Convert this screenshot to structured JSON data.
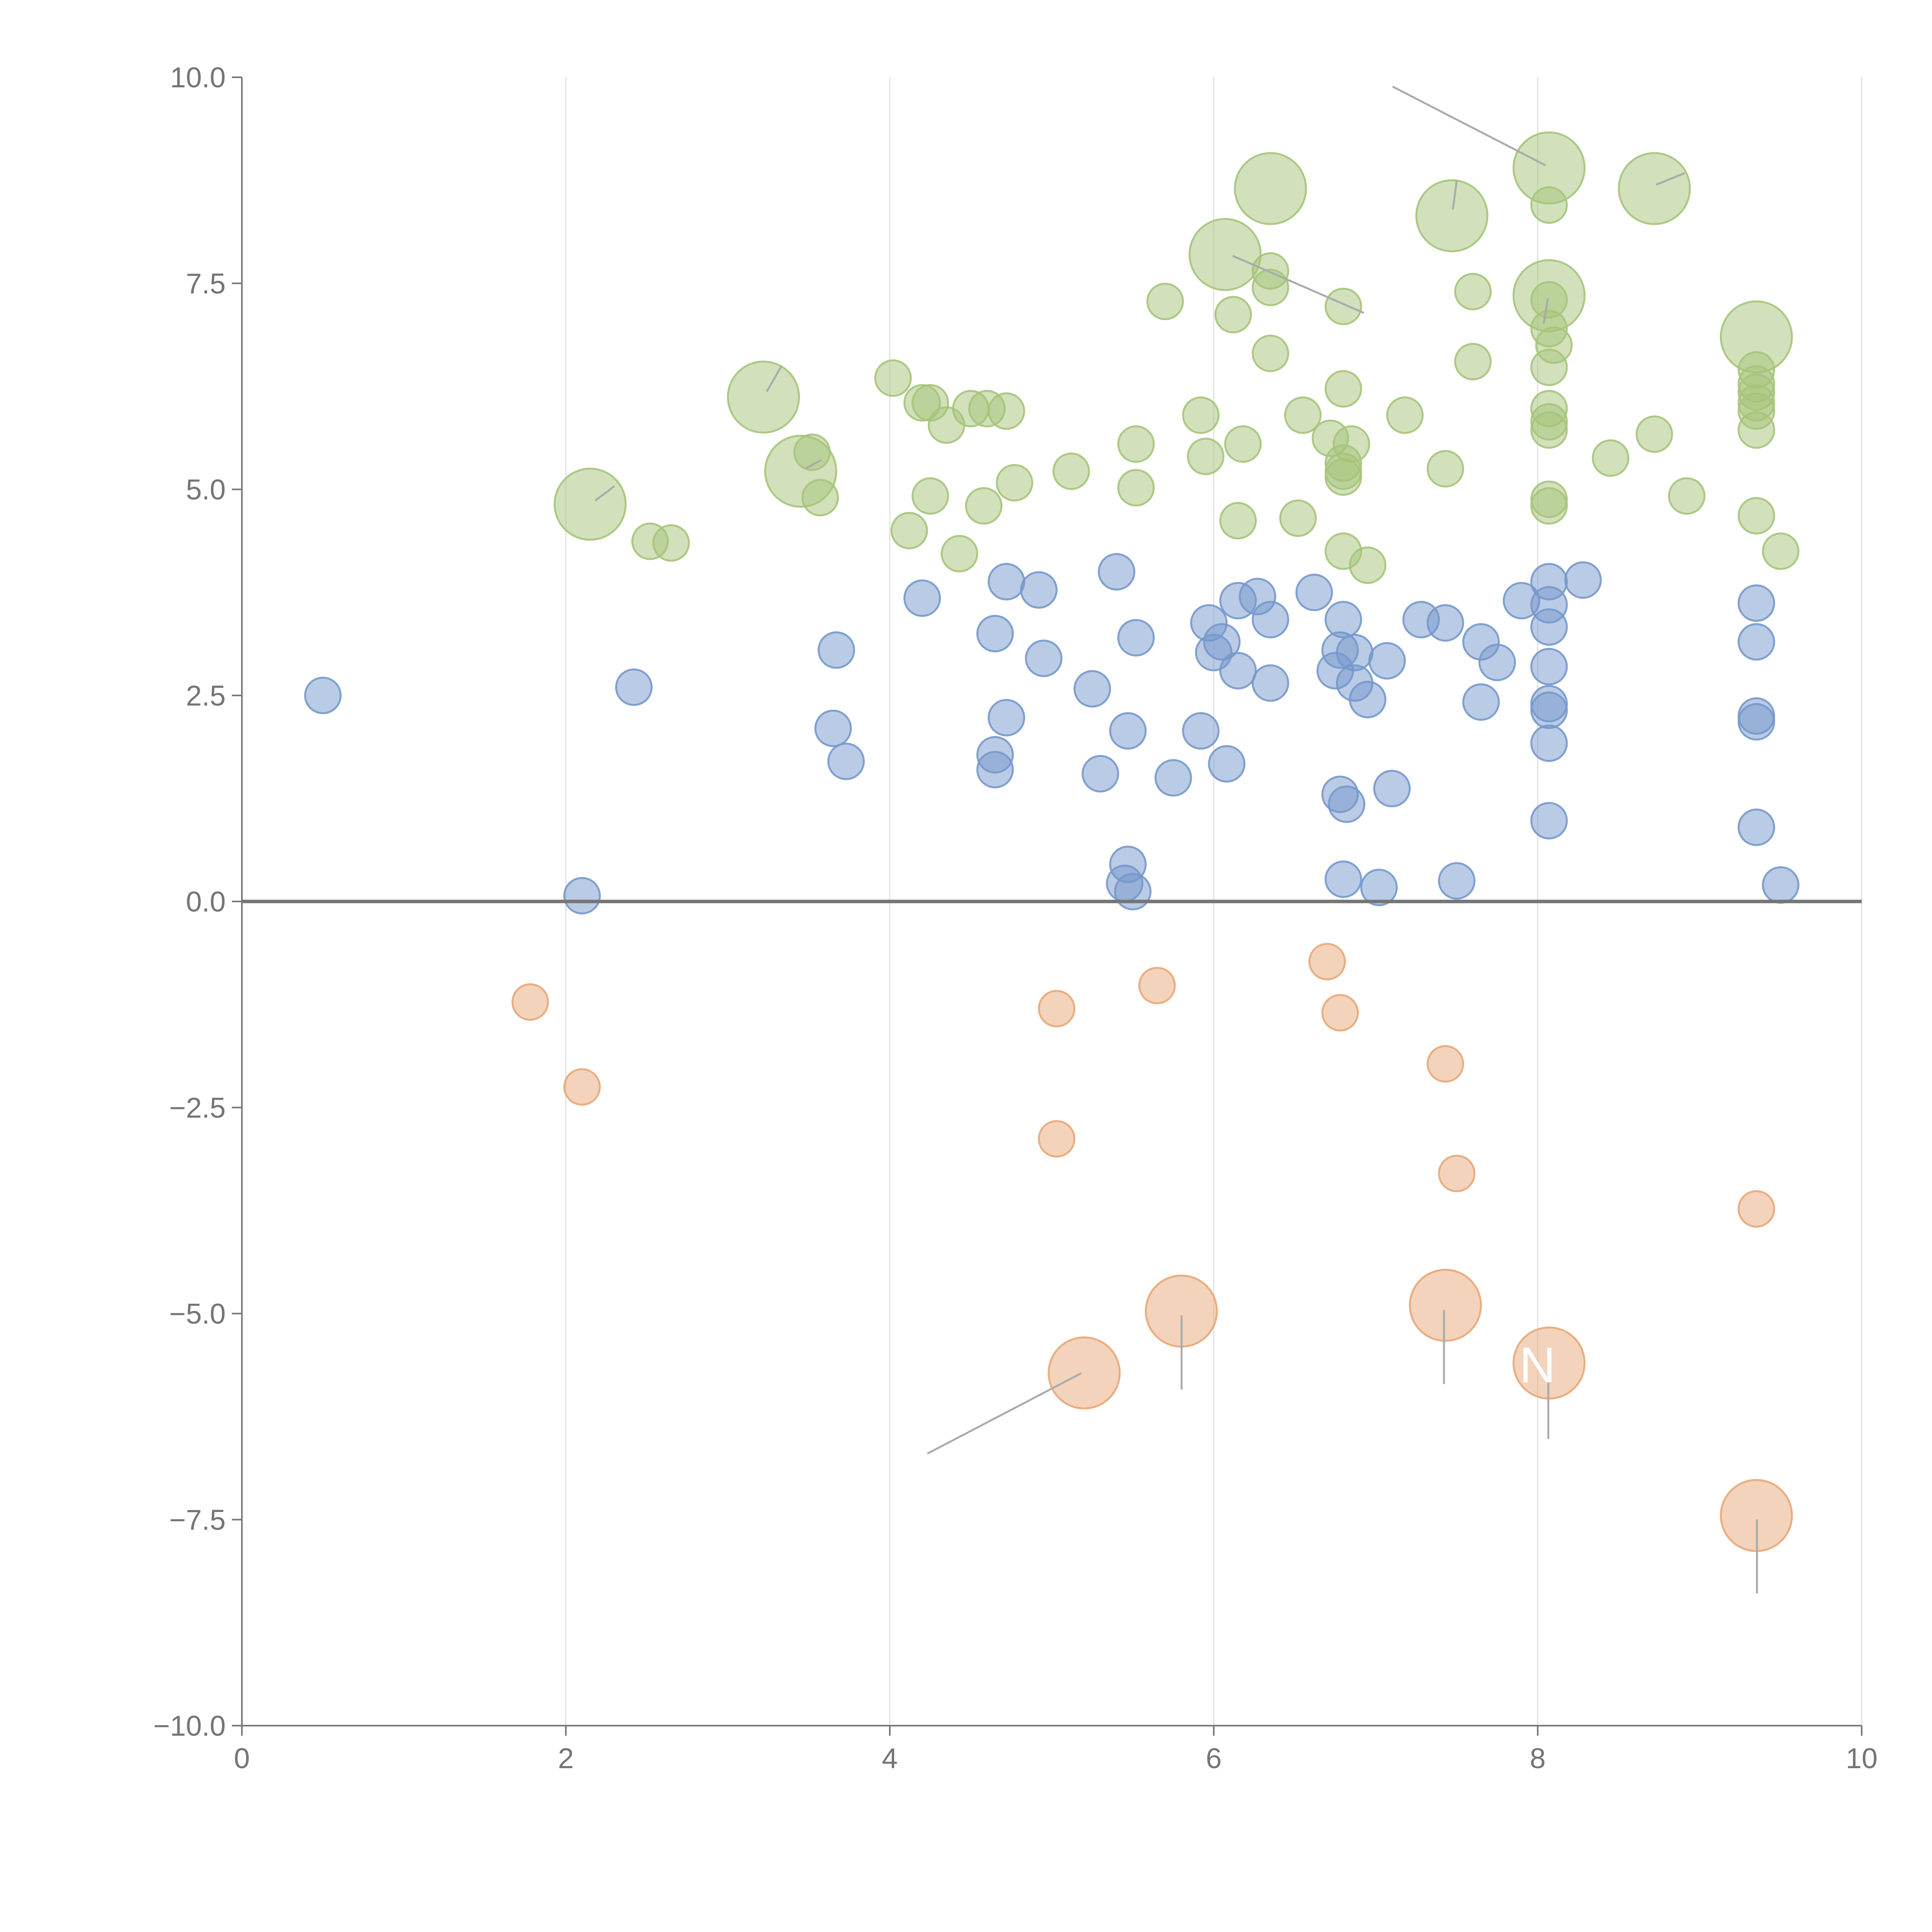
{
  "chart_data": {
    "type": "scatter",
    "title": "",
    "xlabel": "",
    "ylabel": "",
    "xlim": [
      0,
      10
    ],
    "ylim": [
      -10,
      10
    ],
    "grid": {
      "x": true,
      "y": false
    },
    "zero_line": true,
    "x_ticks": [
      {
        "value": 0,
        "label": "0"
      },
      {
        "value": 2,
        "label": "2"
      },
      {
        "value": 4,
        "label": "4"
      },
      {
        "value": 6,
        "label": "6"
      },
      {
        "value": 8,
        "label": "8"
      },
      {
        "value": 10,
        "label": "10"
      }
    ],
    "y_ticks": [
      {
        "value": 10,
        "label": "10.0"
      },
      {
        "value": 7.5,
        "label": "7.5"
      },
      {
        "value": 5,
        "label": "5.0"
      },
      {
        "value": 2.5,
        "label": "2.5"
      },
      {
        "value": 0,
        "label": "0.0"
      },
      {
        "value": -2.5,
        "label": "−2.5"
      },
      {
        "value": -5,
        "label": "−5.0"
      },
      {
        "value": -7.5,
        "label": "−7.5"
      },
      {
        "value": -10,
        "label": "−10.0"
      }
    ],
    "colors": {
      "green": "#a6c47a",
      "blue": "#7598cc",
      "orange": "#e8a778"
    },
    "series": [
      {
        "name": "green",
        "color": "#a6c47a",
        "points": [
          [
            8.07,
            8.9,
            2
          ],
          [
            6.35,
            8.65,
            2
          ],
          [
            8.72,
            8.65,
            2
          ],
          [
            7.47,
            8.32,
            2
          ],
          [
            6.07,
            7.85,
            2
          ],
          [
            8.07,
            7.35,
            2
          ],
          [
            9.35,
            6.85,
            2
          ],
          [
            3.22,
            6.12,
            2
          ],
          [
            3.45,
            5.22,
            2
          ],
          [
            2.15,
            4.82,
            2
          ],
          [
            8.07,
            8.45,
            1
          ],
          [
            6.35,
            7.65,
            1
          ],
          [
            6.35,
            7.45,
            1
          ],
          [
            5.7,
            7.28,
            1
          ],
          [
            6.8,
            7.22,
            1
          ],
          [
            7.6,
            7.4,
            1
          ],
          [
            6.12,
            7.12,
            1
          ],
          [
            8.07,
            7.3,
            1
          ],
          [
            8.07,
            6.95,
            1
          ],
          [
            8.1,
            6.75,
            1
          ],
          [
            6.35,
            6.65,
            1
          ],
          [
            7.6,
            6.55,
            1
          ],
          [
            8.07,
            6.48,
            1
          ],
          [
            9.35,
            6.45,
            1
          ],
          [
            9.35,
            6.28,
            1
          ],
          [
            9.35,
            6.18,
            1
          ],
          [
            9.35,
            6.05,
            1
          ],
          [
            9.35,
            5.95,
            1
          ],
          [
            9.35,
            5.72,
            1
          ],
          [
            4.02,
            6.35,
            1
          ],
          [
            4.2,
            6.05,
            1
          ],
          [
            4.25,
            6.05,
            1
          ],
          [
            4.5,
            5.98,
            1
          ],
          [
            4.6,
            5.98,
            1
          ],
          [
            4.72,
            5.95,
            1
          ],
          [
            4.35,
            5.78,
            1
          ],
          [
            5.92,
            5.9,
            1
          ],
          [
            6.55,
            5.9,
            1
          ],
          [
            7.18,
            5.9,
            1
          ],
          [
            6.8,
            6.22,
            1
          ],
          [
            8.07,
            5.98,
            1
          ],
          [
            8.07,
            5.82,
            1
          ],
          [
            8.07,
            5.72,
            1
          ],
          [
            8.72,
            5.67,
            1
          ],
          [
            5.52,
            5.55,
            1
          ],
          [
            6.18,
            5.55,
            1
          ],
          [
            6.72,
            5.62,
            1
          ],
          [
            6.85,
            5.55,
            1
          ],
          [
            3.52,
            5.45,
            1
          ],
          [
            5.95,
            5.4,
            1
          ],
          [
            8.45,
            5.38,
            1
          ],
          [
            6.8,
            5.32,
            1
          ],
          [
            6.8,
            5.22,
            1
          ],
          [
            6.8,
            5.15,
            1
          ],
          [
            7.43,
            5.25,
            1
          ],
          [
            5.12,
            5.22,
            1
          ],
          [
            4.77,
            5.08,
            1
          ],
          [
            5.52,
            5.02,
            1
          ],
          [
            4.25,
            4.92,
            1
          ],
          [
            3.57,
            4.9,
            1
          ],
          [
            8.92,
            4.92,
            1
          ],
          [
            8.07,
            4.88,
            1
          ],
          [
            8.07,
            4.8,
            1
          ],
          [
            4.58,
            4.8,
            1
          ],
          [
            9.35,
            4.68,
            1
          ],
          [
            6.15,
            4.62,
            1
          ],
          [
            6.52,
            4.65,
            1
          ],
          [
            4.12,
            4.5,
            1
          ],
          [
            2.52,
            4.37,
            1
          ],
          [
            2.65,
            4.35,
            1
          ],
          [
            4.43,
            4.22,
            1
          ],
          [
            6.8,
            4.25,
            1
          ],
          [
            9.5,
            4.25,
            1
          ],
          [
            6.95,
            4.08,
            1
          ]
        ]
      },
      {
        "name": "blue",
        "color": "#7598cc",
        "points": [
          [
            5.4,
            4.0,
            1
          ],
          [
            4.72,
            3.88,
            1
          ],
          [
            4.92,
            3.78,
            1
          ],
          [
            6.62,
            3.75,
            1
          ],
          [
            7.9,
            3.65,
            1
          ],
          [
            4.2,
            3.68,
            1
          ],
          [
            6.15,
            3.65,
            1
          ],
          [
            6.27,
            3.7,
            1
          ],
          [
            8.07,
            3.88,
            1
          ],
          [
            8.28,
            3.9,
            1
          ],
          [
            8.07,
            3.6,
            1
          ],
          [
            9.35,
            3.62,
            1
          ],
          [
            5.97,
            3.38,
            1
          ],
          [
            6.35,
            3.42,
            1
          ],
          [
            6.8,
            3.42,
            1
          ],
          [
            7.28,
            3.42,
            1
          ],
          [
            7.43,
            3.38,
            1
          ],
          [
            8.07,
            3.33,
            1
          ],
          [
            4.65,
            3.25,
            1
          ],
          [
            5.52,
            3.2,
            1
          ],
          [
            6.05,
            3.15,
            1
          ],
          [
            7.65,
            3.15,
            1
          ],
          [
            9.35,
            3.15,
            1
          ],
          [
            3.67,
            3.05,
            1
          ],
          [
            6.0,
            3.02,
            1
          ],
          [
            6.78,
            3.05,
            1
          ],
          [
            6.87,
            3.02,
            1
          ],
          [
            4.95,
            2.95,
            1
          ],
          [
            7.07,
            2.92,
            1
          ],
          [
            7.75,
            2.9,
            1
          ],
          [
            8.07,
            2.85,
            1
          ],
          [
            6.15,
            2.8,
            1
          ],
          [
            6.75,
            2.8,
            1
          ],
          [
            6.35,
            2.65,
            1
          ],
          [
            6.87,
            2.65,
            1
          ],
          [
            0.5,
            2.5,
            1
          ],
          [
            2.42,
            2.6,
            1
          ],
          [
            5.25,
            2.58,
            1
          ],
          [
            6.95,
            2.45,
            1
          ],
          [
            7.65,
            2.42,
            1
          ],
          [
            8.07,
            2.4,
            1
          ],
          [
            8.07,
            2.32,
            1
          ],
          [
            9.35,
            2.25,
            1
          ],
          [
            9.35,
            2.18,
            1
          ],
          [
            4.72,
            2.23,
            1
          ],
          [
            3.65,
            2.1,
            1
          ],
          [
            5.47,
            2.07,
            1
          ],
          [
            5.92,
            2.07,
            1
          ],
          [
            8.07,
            1.92,
            1
          ],
          [
            4.65,
            1.78,
            1
          ],
          [
            3.73,
            1.7,
            1
          ],
          [
            6.08,
            1.67,
            1
          ],
          [
            4.65,
            1.6,
            1
          ],
          [
            5.3,
            1.55,
            1
          ],
          [
            5.75,
            1.5,
            1
          ],
          [
            7.1,
            1.37,
            1
          ],
          [
            6.78,
            1.3,
            1
          ],
          [
            6.82,
            1.18,
            1
          ],
          [
            8.07,
            0.98,
            1
          ],
          [
            9.35,
            0.9,
            1
          ],
          [
            5.47,
            0.45,
            1
          ],
          [
            6.8,
            0.27,
            1
          ],
          [
            7.5,
            0.25,
            1
          ],
          [
            5.45,
            0.22,
            1
          ],
          [
            9.5,
            0.2,
            1
          ],
          [
            7.02,
            0.17,
            1
          ],
          [
            5.5,
            0.12,
            1
          ],
          [
            2.1,
            0.07,
            1
          ]
        ]
      },
      {
        "name": "orange",
        "color": "#e8a778",
        "points": [
          [
            6.7,
            -0.73,
            1
          ],
          [
            5.65,
            -1.02,
            1
          ],
          [
            1.78,
            -1.22,
            1
          ],
          [
            5.03,
            -1.3,
            1
          ],
          [
            6.78,
            -1.35,
            1
          ],
          [
            7.43,
            -1.97,
            1
          ],
          [
            2.1,
            -2.25,
            1
          ],
          [
            5.03,
            -2.88,
            1
          ],
          [
            7.5,
            -3.3,
            1
          ],
          [
            9.35,
            -3.73,
            1
          ],
          [
            5.8,
            -4.97,
            2
          ],
          [
            7.43,
            -4.9,
            2
          ],
          [
            8.07,
            -5.6,
            2
          ],
          [
            5.2,
            -5.72,
            2
          ],
          [
            9.35,
            -7.45,
            2
          ]
        ]
      }
    ],
    "annotations": [
      {
        "text": "N",
        "x": 8.07,
        "y": -5.6
      }
    ]
  }
}
